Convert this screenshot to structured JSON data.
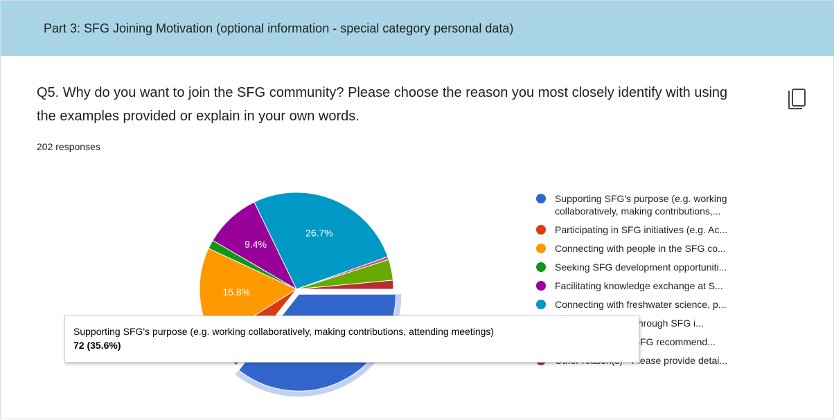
{
  "header": {
    "title": "Part 3: SFG Joining Motivation (optional information - special category personal data)"
  },
  "question": {
    "text": "Q5. Why do you want to join the SFG community? Please choose the reason you most closely identify with using the examples provided or explain in your own words.",
    "responses": "202 responses"
  },
  "chart_data": {
    "type": "pie",
    "categories": [
      "Supporting SFG's purpose (e.g. working collaboratively, making contributions,...",
      "Participating in SFG initiatives (e.g. Ac...",
      "Connecting with people in the SFG co...",
      "Seeking SFG development opportuniti...",
      "Facilitating knowledge exchange at S...",
      "Connecting with freshwater science, p...",
      "Becoming leaders through SFG i...",
      "Providing positive SFG recommend...",
      "Other reason(s) - Please provide detai..."
    ],
    "values": [
      72,
      11,
      32,
      3,
      19,
      54,
      1,
      7,
      3
    ],
    "value_labels": [
      null,
      null,
      "15.8%",
      null,
      "9.4%",
      "26.7%",
      null,
      null,
      null
    ],
    "colors": [
      "#3366cc",
      "#dc3912",
      "#ff9900",
      "#109618",
      "#990099",
      "#0099c6",
      "#dd4477",
      "#66aa00",
      "#b82e2e"
    ],
    "highlighted": 0,
    "tooltip": {
      "text": "Supporting SFG's purpose (e.g. working collaboratively, making contributions, attending meetings)",
      "label": "72 (35.6%)"
    }
  }
}
